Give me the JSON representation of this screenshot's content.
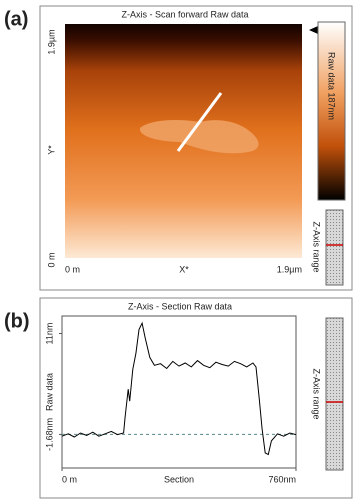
{
  "panel_a": {
    "label": "(a)",
    "title": "Z-Axis - Scan forward   Raw data",
    "y_ticks": [
      "1.9µm",
      "Y*",
      "0 m"
    ],
    "x_ticks": [
      "0 m",
      "X*",
      "1.9µm"
    ],
    "colorbar_label": "Raw data 187nm",
    "range_label": "Z-Axis range"
  },
  "chart_data": {
    "type": "line",
    "panel_label": "(b)",
    "title": "Z-Axis - Section   Raw data",
    "xlabel": "Section",
    "ylabel": "Raw data",
    "range_label": "Z-Axis range",
    "x": [
      0,
      20,
      40,
      60,
      80,
      100,
      120,
      140,
      160,
      180,
      200,
      205,
      215,
      220,
      230,
      240,
      250,
      260,
      270,
      285,
      300,
      320,
      340,
      360,
      380,
      400,
      420,
      440,
      460,
      480,
      500,
      520,
      540,
      560,
      580,
      600,
      620,
      630,
      640,
      650,
      660,
      670,
      680,
      700,
      720,
      740,
      760
    ],
    "values": [
      -1.9,
      -1.6,
      -2.0,
      -1.5,
      -1.8,
      -1.4,
      -1.9,
      -1.6,
      -1.3,
      -1.7,
      -1.5,
      0.5,
      4.0,
      2.5,
      6.5,
      8.5,
      11.5,
      12.3,
      10.5,
      8.0,
      7.0,
      7.2,
      6.6,
      7.5,
      6.9,
      7.3,
      6.8,
      7.6,
      7.0,
      6.7,
      7.4,
      7.1,
      6.9,
      7.5,
      7.2,
      6.8,
      7.3,
      6.8,
      3.0,
      -1.0,
      -4.0,
      -4.2,
      -2.5,
      -1.6,
      -1.9,
      -1.5,
      -1.7
    ],
    "color": "#000000",
    "xlim": [
      0,
      760
    ],
    "ylim": [
      -5.9,
      13.2
    ],
    "xticks": [
      {
        "value": 0,
        "label": "0 m"
      },
      {
        "value": 760,
        "label": "760nm"
      }
    ],
    "yticks": [
      {
        "value": -1.68,
        "label": "-1.68nm"
      },
      {
        "value": 11,
        "label": "11nm"
      }
    ]
  }
}
